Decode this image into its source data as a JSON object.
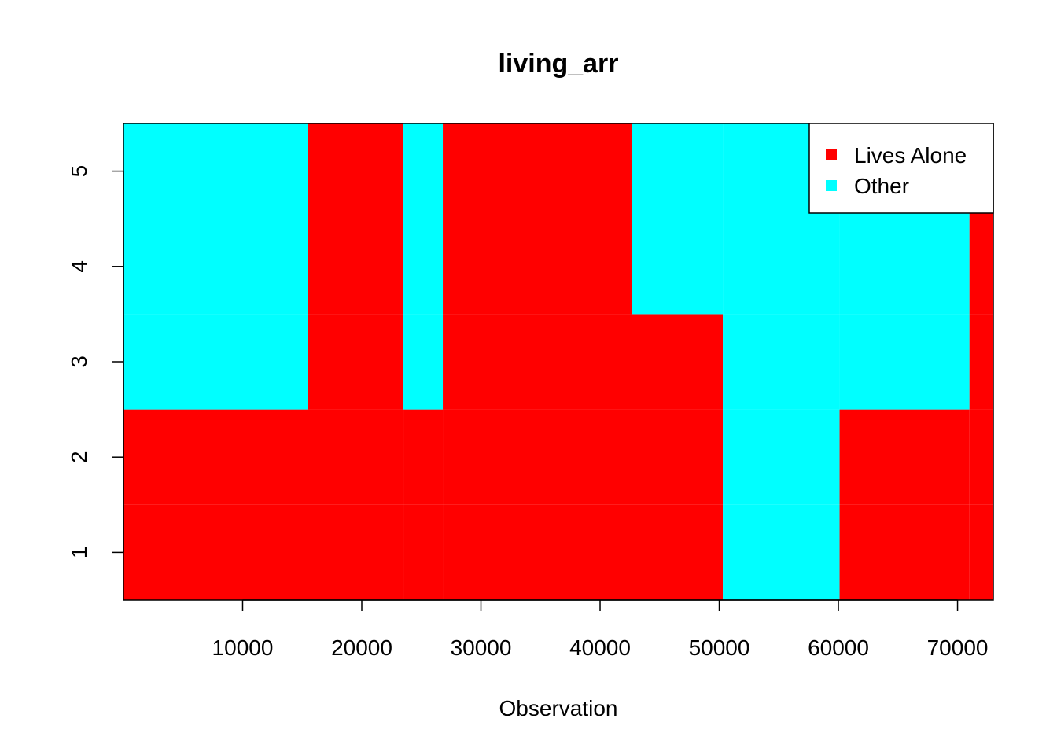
{
  "chart_data": {
    "type": "heatmap",
    "title": "living_arr",
    "xlabel": "Observation",
    "ylabel": "",
    "xlim": [
      1,
      73000
    ],
    "ylim": [
      0.5,
      5.5
    ],
    "x_ticks": [
      10000,
      20000,
      30000,
      40000,
      50000,
      60000,
      70000
    ],
    "x_tick_labels": [
      "10000",
      "20000",
      "30000",
      "40000",
      "50000",
      "60000",
      "70000"
    ],
    "y_ticks": [
      1,
      2,
      3,
      4,
      5
    ],
    "y_tick_labels": [
      "1",
      "2",
      "3",
      "4",
      "5"
    ],
    "legend": {
      "position": "top-right",
      "entries": [
        {
          "label": "Lives Alone",
          "color": "#ff0000"
        },
        {
          "label": "Other",
          "color": "#00ffff"
        }
      ]
    },
    "colors": {
      "Lives Alone": "#ff0000",
      "Other": "#00ffff"
    },
    "grid": false,
    "segments": [
      {
        "x_start": 1,
        "x_end": 15500,
        "row_values": [
          "Lives Alone",
          "Lives Alone",
          "Other",
          "Other",
          "Other"
        ]
      },
      {
        "x_start": 15500,
        "x_end": 23500,
        "row_values": [
          "Lives Alone",
          "Lives Alone",
          "Lives Alone",
          "Lives Alone",
          "Lives Alone"
        ]
      },
      {
        "x_start": 23500,
        "x_end": 26800,
        "row_values": [
          "Lives Alone",
          "Lives Alone",
          "Other",
          "Other",
          "Other"
        ]
      },
      {
        "x_start": 26800,
        "x_end": 42700,
        "row_values": [
          "Lives Alone",
          "Lives Alone",
          "Lives Alone",
          "Lives Alone",
          "Lives Alone"
        ]
      },
      {
        "x_start": 42700,
        "x_end": 50300,
        "row_values": [
          "Lives Alone",
          "Lives Alone",
          "Lives Alone",
          "Other",
          "Other"
        ]
      },
      {
        "x_start": 50300,
        "x_end": 60100,
        "row_values": [
          "Other",
          "Other",
          "Other",
          "Other",
          "Other"
        ]
      },
      {
        "x_start": 60100,
        "x_end": 71000,
        "row_values": [
          "Lives Alone",
          "Lives Alone",
          "Other",
          "Other",
          "Other"
        ]
      },
      {
        "x_start": 71000,
        "x_end": 73000,
        "row_values": [
          "Lives Alone",
          "Lives Alone",
          "Lives Alone",
          "Lives Alone",
          "Lives Alone"
        ]
      }
    ]
  }
}
